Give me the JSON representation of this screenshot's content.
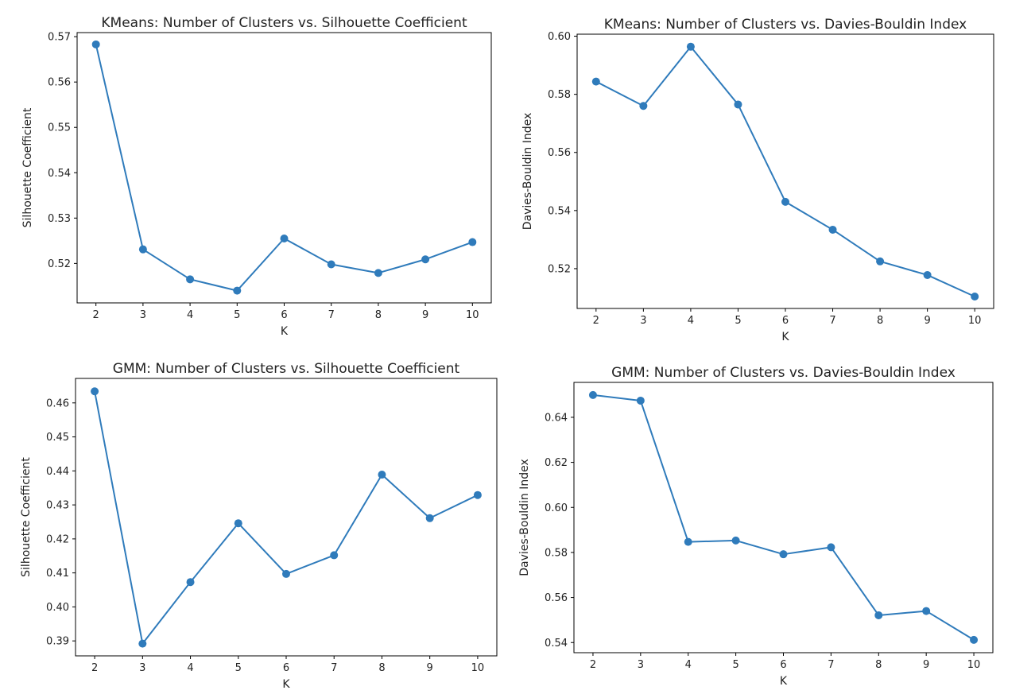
{
  "chart_data": [
    {
      "type": "line",
      "title": "KMeans: Number of Clusters vs. Silhouette Coefficient",
      "xlabel": "K",
      "ylabel": "Silhouette Coefficient",
      "x": [
        2,
        3,
        4,
        5,
        6,
        7,
        8,
        9,
        10
      ],
      "x_ticks": [
        "2",
        "3",
        "4",
        "5",
        "6",
        "7",
        "8",
        "9",
        "10"
      ],
      "y_ticks": [
        "0.52",
        "0.53",
        "0.54",
        "0.55",
        "0.56",
        "0.57"
      ],
      "y_tick_values": [
        0.52,
        0.53,
        0.54,
        0.55,
        0.56,
        0.57
      ],
      "xlim": [
        1.6,
        10.4
      ],
      "ylim": [
        0.5113,
        0.5709
      ],
      "series": [
        {
          "values": [
            0.5683,
            0.5231,
            0.5165,
            0.514,
            0.5255,
            0.5198,
            0.5179,
            0.5209,
            0.5247
          ]
        }
      ],
      "marker": "circle",
      "color": "#2f7bbb",
      "grid": false,
      "legend": "none"
    },
    {
      "type": "line",
      "title": "KMeans: Number of Clusters vs. Davies-Bouldin Index",
      "xlabel": "K",
      "ylabel": "Davies-Bouldin Index",
      "x": [
        2,
        3,
        4,
        5,
        6,
        7,
        8,
        9,
        10
      ],
      "x_ticks": [
        "2",
        "3",
        "4",
        "5",
        "6",
        "7",
        "8",
        "9",
        "10"
      ],
      "y_ticks": [
        "0.52",
        "0.54",
        "0.56",
        "0.58",
        "0.60"
      ],
      "y_tick_values": [
        0.52,
        0.54,
        0.56,
        0.58,
        0.6
      ],
      "xlim": [
        1.6,
        10.4
      ],
      "ylim": [
        0.5063,
        0.6007
      ],
      "series": [
        {
          "values": [
            0.5844,
            0.576,
            0.5964,
            0.5765,
            0.543,
            0.5334,
            0.5225,
            0.5178,
            0.5104
          ]
        }
      ],
      "marker": "circle",
      "color": "#2f7bbb",
      "grid": false,
      "legend": "none"
    },
    {
      "type": "line",
      "title": "GMM: Number of Clusters vs. Silhouette Coefficient",
      "xlabel": "K",
      "ylabel": "Silhouette Coefficient",
      "x": [
        2,
        3,
        4,
        5,
        6,
        7,
        8,
        9,
        10
      ],
      "x_ticks": [
        "2",
        "3",
        "4",
        "5",
        "6",
        "7",
        "8",
        "9",
        "10"
      ],
      "y_ticks": [
        "0.39",
        "0.40",
        "0.41",
        "0.42",
        "0.43",
        "0.44",
        "0.45",
        "0.46"
      ],
      "y_tick_values": [
        0.39,
        0.4,
        0.41,
        0.42,
        0.43,
        0.44,
        0.45,
        0.46
      ],
      "xlim": [
        1.6,
        10.4
      ],
      "ylim": [
        0.3856,
        0.4672
      ],
      "series": [
        {
          "values": [
            0.4634,
            0.3892,
            0.4073,
            0.4246,
            0.4097,
            0.4152,
            0.4389,
            0.4261,
            0.4329
          ]
        }
      ],
      "marker": "circle",
      "color": "#2f7bbb",
      "grid": false,
      "legend": "none"
    },
    {
      "type": "line",
      "title": "GMM: Number of Clusters vs. Davies-Bouldin Index",
      "xlabel": "K",
      "ylabel": "Davies-Bouldin Index",
      "x": [
        2,
        3,
        4,
        5,
        6,
        7,
        8,
        9,
        10
      ],
      "x_ticks": [
        "2",
        "3",
        "4",
        "5",
        "6",
        "7",
        "8",
        "9",
        "10"
      ],
      "y_ticks": [
        "0.54",
        "0.56",
        "0.58",
        "0.60",
        "0.62",
        "0.64"
      ],
      "y_tick_values": [
        0.54,
        0.56,
        0.58,
        0.6,
        0.62,
        0.64
      ],
      "xlim": [
        1.6,
        10.4
      ],
      "ylim": [
        0.5355,
        0.6555
      ],
      "series": [
        {
          "values": [
            0.6499,
            0.6474,
            0.5847,
            0.5853,
            0.5792,
            0.5823,
            0.5521,
            0.554,
            0.5412
          ]
        }
      ],
      "marker": "circle",
      "color": "#2f7bbb",
      "grid": false,
      "legend": "none"
    }
  ]
}
